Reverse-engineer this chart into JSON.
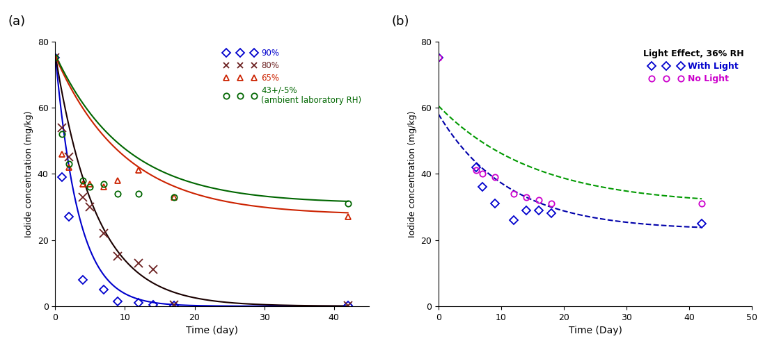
{
  "panel_a": {
    "title": "(a)",
    "xlabel": "Time (day)",
    "ylabel": "Iodide concentration (mg/kg)",
    "xlim": [
      0,
      45
    ],
    "ylim": [
      0,
      80
    ],
    "xticks": [
      0,
      10,
      20,
      30,
      40
    ],
    "yticks": [
      0,
      20,
      40,
      60,
      80
    ],
    "series": {
      "90%": {
        "color": "#0000CC",
        "marker": "D",
        "points_x": [
          0,
          1,
          2,
          4,
          7,
          9,
          12,
          14,
          17,
          42
        ],
        "points_y": [
          75,
          39,
          27,
          8,
          5,
          1.5,
          1,
          0.5,
          0.2,
          0.1
        ],
        "curve_a": 76,
        "curve_b": 0.3,
        "curve_c": 0.0
      },
      "80%": {
        "color": "#6B2020",
        "marker": "x",
        "points_x": [
          0,
          1,
          2,
          4,
          5,
          7,
          9,
          12,
          14,
          17,
          42
        ],
        "points_y": [
          75,
          54,
          45,
          33,
          30,
          22,
          15,
          13,
          11,
          0.5,
          0.2
        ],
        "curve_a": 76,
        "curve_b": 0.17,
        "curve_c": 0.0
      },
      "65%": {
        "color": "#CC2200",
        "marker": "^",
        "points_x": [
          0,
          1,
          2,
          4,
          5,
          7,
          9,
          12,
          17,
          42
        ],
        "points_y": [
          75,
          46,
          42,
          37,
          37,
          36,
          38,
          41,
          33,
          27
        ],
        "curve_a": 48,
        "curve_b": 0.1,
        "curve_c": 27.5
      },
      "43+/-5%": {
        "color": "#006600",
        "marker": "o",
        "points_x": [
          0,
          1,
          2,
          4,
          5,
          7,
          9,
          12,
          17,
          42
        ],
        "points_y": [
          75,
          52,
          43,
          38,
          36,
          37,
          34,
          34,
          33,
          31
        ],
        "curve_a": 45,
        "curve_b": 0.1,
        "curve_c": 31.0
      }
    },
    "legend_labels": [
      "90%",
      "80%",
      "65%",
      "43+/-5%\n(ambient laboratory RH)"
    ],
    "legend_colors": [
      "#0000CC",
      "#6B2020",
      "#CC2200",
      "#006600"
    ],
    "legend_markers": [
      "D",
      "x",
      "^",
      "o"
    ],
    "curve_colors": [
      "#0000CC",
      "#1A0000",
      "#CC2200",
      "#006600"
    ]
  },
  "panel_b": {
    "title": "(b)",
    "xlabel": "Time (Day)",
    "ylabel": "Iodide concentration (mg/kg)",
    "xlim": [
      0,
      50
    ],
    "ylim": [
      0,
      80
    ],
    "xticks": [
      0,
      10,
      20,
      30,
      40,
      50
    ],
    "yticks": [
      0,
      20,
      40,
      60,
      80
    ],
    "legend_title": "Light Effect, 36% RH",
    "series": {
      "With Light": {
        "color": "#0000CC",
        "marker": "D",
        "points_x": [
          0,
          6,
          7,
          9,
          12,
          14,
          16,
          18,
          42
        ],
        "points_y": [
          75,
          42,
          36,
          31,
          26,
          29,
          29,
          28,
          25
        ],
        "curve_a": 35,
        "curve_b": 0.09,
        "curve_c": 23.0,
        "curve_color": "#0000AA"
      },
      "No Light": {
        "color": "#CC00CC",
        "marker": "o",
        "points_x": [
          0,
          6,
          7,
          9,
          12,
          14,
          16,
          18,
          42
        ],
        "points_y": [
          75,
          41,
          40,
          39,
          34,
          33,
          32,
          31,
          31
        ],
        "curve_a": 30,
        "curve_b": 0.065,
        "curve_c": 30.5,
        "curve_color": "#009900"
      }
    },
    "legend_labels": [
      "With Light",
      "No Light"
    ],
    "legend_colors": [
      "#0000CC",
      "#CC00CC"
    ],
    "legend_markers": [
      "D",
      "o"
    ]
  }
}
